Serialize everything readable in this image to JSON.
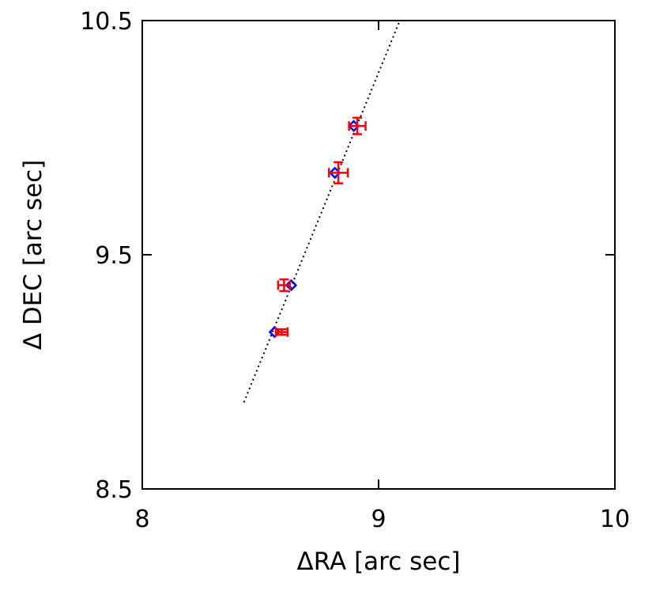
{
  "chart_data": {
    "type": "scatter",
    "title": "",
    "xlabel": "ΔRA [arc sec]",
    "ylabel": "Δ DEC [arc sec]",
    "xlim": [
      8,
      10
    ],
    "ylim": [
      8.5,
      10.5
    ],
    "xticks": [
      8,
      9,
      10
    ],
    "yticks": [
      8.5,
      9.5,
      10.5
    ],
    "xtick_labels": [
      "8",
      "9",
      "10"
    ],
    "ytick_labels": [
      "8.5",
      "9.5",
      "10.5"
    ],
    "grid": false,
    "series": [
      {
        "marker": "plus-with-error-bars",
        "color": "#ff0000",
        "points": [
          {
            "x": 8.91,
            "y": 10.05,
            "xerr": 0.035,
            "yerr": 0.035
          },
          {
            "x": 8.83,
            "y": 9.85,
            "xerr": 0.04,
            "yerr": 0.045
          },
          {
            "x": 8.6,
            "y": 9.37,
            "xerr": 0.025,
            "yerr": 0.025
          },
          {
            "x": 8.59,
            "y": 9.17,
            "xerr": 0.025,
            "yerr": 0.012
          }
        ]
      },
      {
        "marker": "diamond",
        "color": "#0000ff",
        "points": [
          {
            "x": 8.895,
            "y": 10.05
          },
          {
            "x": 8.815,
            "y": 9.85
          },
          {
            "x": 8.63,
            "y": 9.37
          },
          {
            "x": 8.56,
            "y": 9.17
          }
        ]
      },
      {
        "marker": "dotted-line",
        "color": "#000000",
        "points": [
          {
            "x": 8.43,
            "y": 8.87
          },
          {
            "x": 9.09,
            "y": 10.5
          }
        ]
      }
    ]
  }
}
